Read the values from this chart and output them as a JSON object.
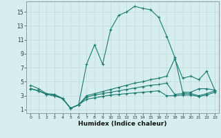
{
  "xlabel": "Humidex (Indice chaleur)",
  "background_color": "#d6eeee",
  "grid_color": "#c0d8d8",
  "line_color": "#1a7a6e",
  "xlim": [
    -0.5,
    23.5
  ],
  "ylim": [
    0.5,
    16.5
  ],
  "xticks": [
    0,
    1,
    2,
    3,
    4,
    5,
    6,
    7,
    8,
    9,
    10,
    11,
    12,
    13,
    14,
    15,
    16,
    17,
    18,
    19,
    20,
    21,
    22,
    23
  ],
  "yticks": [
    1,
    3,
    5,
    7,
    9,
    11,
    13,
    15
  ],
  "s1_y": [
    4.5,
    4.0,
    3.3,
    3.2,
    2.6,
    1.2,
    1.7,
    7.5,
    10.3,
    7.5,
    12.5,
    14.5,
    15.0,
    15.8,
    15.5,
    15.3,
    14.2,
    11.5,
    8.5,
    3.5,
    3.5,
    4.0,
    4.0,
    3.8
  ],
  "s2_y": [
    4.0,
    3.7,
    3.2,
    3.0,
    2.6,
    1.2,
    1.7,
    3.0,
    3.3,
    3.6,
    3.9,
    4.2,
    4.5,
    4.8,
    5.0,
    5.3,
    5.5,
    5.8,
    8.3,
    5.5,
    5.8,
    5.3,
    6.5,
    3.8
  ],
  "s3_y": [
    4.0,
    3.7,
    3.2,
    3.0,
    2.6,
    1.2,
    1.7,
    2.8,
    3.1,
    3.3,
    3.5,
    3.7,
    3.9,
    4.1,
    4.3,
    4.5,
    4.6,
    4.8,
    3.2,
    3.3,
    3.3,
    3.0,
    3.3,
    3.7
  ],
  "s4_y": [
    4.0,
    3.7,
    3.2,
    3.0,
    2.6,
    1.2,
    1.7,
    2.5,
    2.7,
    2.9,
    3.1,
    3.2,
    3.3,
    3.4,
    3.5,
    3.6,
    3.7,
    3.0,
    3.0,
    3.1,
    3.1,
    2.9,
    3.1,
    3.5
  ]
}
